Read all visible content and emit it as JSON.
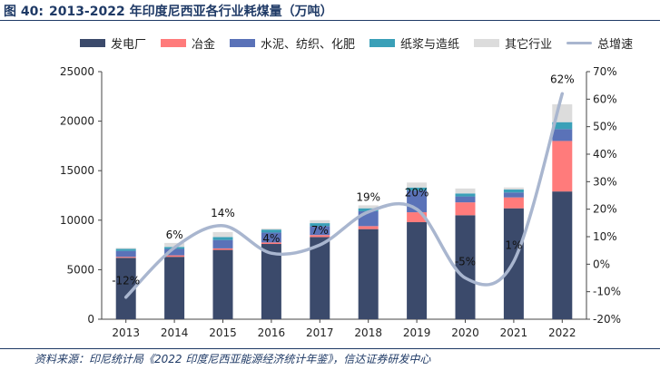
{
  "figure": {
    "number": "图 40:",
    "title": "2013-2022 年印度尼西亚各行业耗煤量（万吨）"
  },
  "source": "资料来源：印尼统计局《2022 印度尼西亚能源经济统计年鉴》，信达证券研发中心",
  "chart_data": {
    "type": "bar",
    "stacked": true,
    "categories": [
      "2013",
      "2014",
      "2015",
      "2016",
      "2017",
      "2018",
      "2019",
      "2020",
      "2021",
      "2022"
    ],
    "series": [
      {
        "name": "发电厂",
        "color": "#3b4a6b",
        "values": [
          6200,
          6300,
          7000,
          7600,
          8300,
          9100,
          9800,
          10500,
          11200,
          12900
        ]
      },
      {
        "name": "冶金",
        "color": "#ff7b7b",
        "values": [
          100,
          150,
          150,
          150,
          200,
          300,
          1000,
          1300,
          1100,
          5100
        ]
      },
      {
        "name": "水泥、纺织、化肥",
        "color": "#5a72b8",
        "values": [
          600,
          650,
          850,
          1000,
          900,
          1500,
          2200,
          600,
          500,
          1200
        ]
      },
      {
        "name": "纸浆与造纸",
        "color": "#3aa0b8",
        "values": [
          200,
          200,
          300,
          300,
          300,
          300,
          300,
          300,
          300,
          700
        ]
      },
      {
        "name": "其它行业",
        "color": "#dcdcdc",
        "values": [
          100,
          400,
          500,
          100,
          300,
          300,
          500,
          500,
          200,
          1800
        ]
      }
    ],
    "line": {
      "name": "总增速",
      "color": "#a9b6cf",
      "axis": "right",
      "values": [
        -12,
        6,
        14,
        4,
        7,
        19,
        20,
        -5,
        1,
        62
      ],
      "labels": [
        "-12%",
        "6%",
        "14%",
        "4%",
        "7%",
        "19%",
        "20%",
        "-5%",
        "1%",
        "62%"
      ]
    },
    "left_axis": {
      "min": 0,
      "max": 25000,
      "ticks": [
        "0",
        "5000",
        "10000",
        "15000",
        "20000",
        "25000"
      ]
    },
    "right_axis": {
      "min": -20,
      "max": 70,
      "ticks": [
        "-20%",
        "-10%",
        "0%",
        "10%",
        "20%",
        "30%",
        "40%",
        "50%",
        "60%",
        "70%"
      ]
    },
    "legend_position": "top"
  }
}
